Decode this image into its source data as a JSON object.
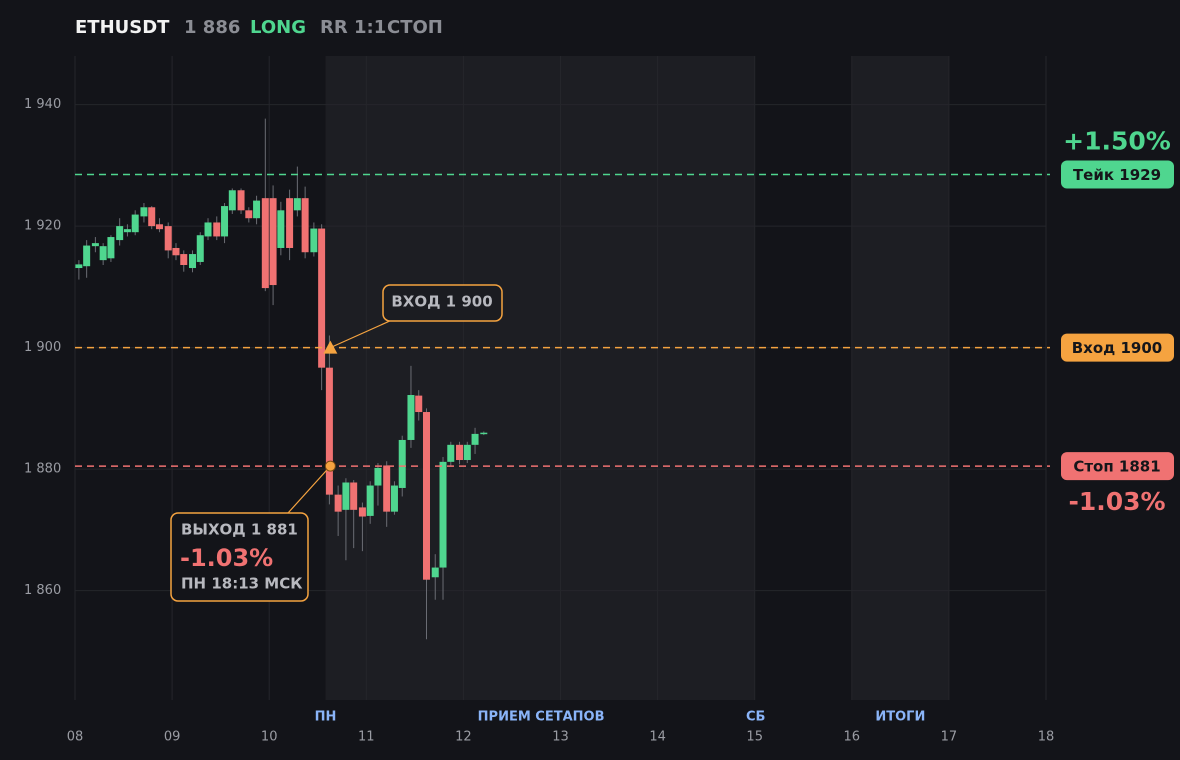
{
  "header": {
    "symbol": "ETHUSDT",
    "price": "1 886",
    "side": "LONG",
    "rr": "RR 1:1",
    "status": "СТОП"
  },
  "chart_data": {
    "type": "candlestick",
    "xlim": [
      8,
      18
    ],
    "ylim": [
      1842,
      1948
    ],
    "xticks": [
      {
        "value": 8,
        "label": "08"
      },
      {
        "value": 9,
        "label": "09"
      },
      {
        "value": 10,
        "label": "10"
      },
      {
        "value": 11,
        "label": "11"
      },
      {
        "value": 12,
        "label": "12"
      },
      {
        "value": 13,
        "label": "13"
      },
      {
        "value": 14,
        "label": "14"
      },
      {
        "value": 15,
        "label": "15"
      },
      {
        "value": 16,
        "label": "16"
      },
      {
        "value": 17,
        "label": "17"
      },
      {
        "value": 18,
        "label": "18"
      }
    ],
    "yticks": [
      {
        "value": 1860,
        "label": "1 860"
      },
      {
        "value": 1880,
        "label": "1 880"
      },
      {
        "value": 1900,
        "label": "1 900"
      },
      {
        "value": 1920,
        "label": "1 920"
      },
      {
        "value": 1940,
        "label": "1 940"
      }
    ],
    "grid": true,
    "up_color": "#4fd68f",
    "down_color": "#f07272",
    "shaded": [
      {
        "start": 10.58,
        "end": 15.0
      },
      {
        "start": 16,
        "end": 17
      }
    ],
    "session_labels": [
      {
        "label": "ПН",
        "x": 10.58
      },
      {
        "label": "ПРИЕМ СЕТАПОВ",
        "x": 12.8
      },
      {
        "label": "СБ",
        "x": 15.01
      },
      {
        "label": "ИТОГИ",
        "x": 16.5
      }
    ],
    "x": [
      8.04,
      8.12,
      8.21,
      8.29,
      8.37,
      8.46,
      8.54,
      8.62,
      8.71,
      8.79,
      8.87,
      8.96,
      9.04,
      9.12,
      9.21,
      9.29,
      9.37,
      9.46,
      9.54,
      9.62,
      9.71,
      9.79,
      9.87,
      9.96,
      10.04,
      10.12,
      10.21,
      10.29,
      10.37,
      10.46,
      10.54,
      10.62,
      10.71,
      10.79,
      10.87,
      10.96,
      11.04,
      11.12,
      11.21,
      11.29,
      11.37,
      11.46,
      11.54,
      11.62,
      11.71,
      11.79,
      11.87,
      11.96,
      12.04,
      12.12,
      12.21
    ],
    "open": [
      1913.1,
      1913.4,
      1916.7,
      1914.4,
      1914.7,
      1917.7,
      1919.0,
      1919.0,
      1921.6,
      1923.1,
      1920.3,
      1920.0,
      1916.4,
      1915.4,
      1913.1,
      1914.1,
      1918.3,
      1920.6,
      1918.3,
      1922.6,
      1925.9,
      1922.6,
      1921.3,
      1924.6,
      1924.6,
      1916.4,
      1924.6,
      1922.6,
      1924.6,
      1915.7,
      1919.6,
      1896.7,
      1875.8,
      1873.3,
      1877.8,
      1873.7,
      1872.3,
      1877.3,
      1880.6,
      1873.0,
      1876.9,
      1884.8,
      1892.1,
      1889.4,
      1862.2,
      1863.8,
      1881.2,
      1884.0,
      1881.5,
      1884.0,
      1885.8
    ],
    "high": [
      1914.4,
      1917.7,
      1918.2,
      1917.2,
      1918.5,
      1921.3,
      1920.3,
      1922.6,
      1923.8,
      1923.3,
      1921.3,
      1920.6,
      1917.2,
      1916.0,
      1916.0,
      1919.0,
      1921.3,
      1921.6,
      1923.8,
      1926.2,
      1926.2,
      1923.1,
      1925.0,
      1937.7,
      1926.7,
      1924.0,
      1926.0,
      1929.8,
      1926.5,
      1920.6,
      1920.3,
      1902.0,
      1877.3,
      1878.5,
      1878.2,
      1874.5,
      1878.0,
      1881.0,
      1881.3,
      1878.0,
      1885.5,
      1897.0,
      1893.0,
      1890.0,
      1866.0,
      1882.0,
      1884.5,
      1884.5,
      1884.5,
      1886.8,
      1886.2
    ],
    "low": [
      1911.2,
      1911.5,
      1915.7,
      1913.6,
      1914.1,
      1916.8,
      1918.3,
      1918.5,
      1920.6,
      1919.5,
      1919.0,
      1914.7,
      1914.4,
      1912.5,
      1912.4,
      1913.6,
      1917.7,
      1917.7,
      1917.2,
      1922.0,
      1922.0,
      1920.6,
      1920.3,
      1909.3,
      1907.0,
      1915.2,
      1914.4,
      1921.6,
      1914.7,
      1915.0,
      1893.0,
      1874.2,
      1869.0,
      1865.0,
      1867.0,
      1866.5,
      1871.0,
      1874.0,
      1870.5,
      1872.5,
      1875.5,
      1883.5,
      1888.0,
      1852.0,
      1858.5,
      1858.5,
      1880.5,
      1880.8,
      1881.0,
      1882.5,
      1885.6
    ],
    "close": [
      1913.7,
      1916.8,
      1917.2,
      1916.7,
      1918.2,
      1920.0,
      1919.5,
      1921.9,
      1923.1,
      1920.0,
      1919.5,
      1916.0,
      1915.2,
      1913.6,
      1915.4,
      1918.5,
      1920.6,
      1918.3,
      1923.3,
      1925.9,
      1922.6,
      1921.3,
      1924.2,
      1909.8,
      1910.3,
      1922.6,
      1916.4,
      1924.6,
      1915.7,
      1919.6,
      1896.7,
      1875.8,
      1873.0,
      1877.8,
      1873.3,
      1872.2,
      1877.3,
      1880.2,
      1873.0,
      1877.3,
      1884.8,
      1892.2,
      1889.4,
      1861.8,
      1863.8,
      1881.2,
      1884.0,
      1881.5,
      1884.0,
      1885.8,
      1886.0
    ],
    "levels": [
      {
        "name": "Тейк 1929",
        "value": 1928.5,
        "color": "#4fd68f",
        "change": "+1.50%"
      },
      {
        "name": "Вход 1900",
        "value": 1900,
        "color": "#f5a340"
      },
      {
        "name": "Стоп 1881",
        "value": 1880.5,
        "color": "#f07272",
        "change": "-1.03%"
      }
    ],
    "entry": {
      "label": "ВХОД 1 900",
      "x": 10.63,
      "y": 1900
    },
    "exit": {
      "label": "ВЫХОД 1 881",
      "change": "-1.03%",
      "time": "ПН 18:13 МСК",
      "x": 10.63,
      "y": 1880.5
    }
  }
}
